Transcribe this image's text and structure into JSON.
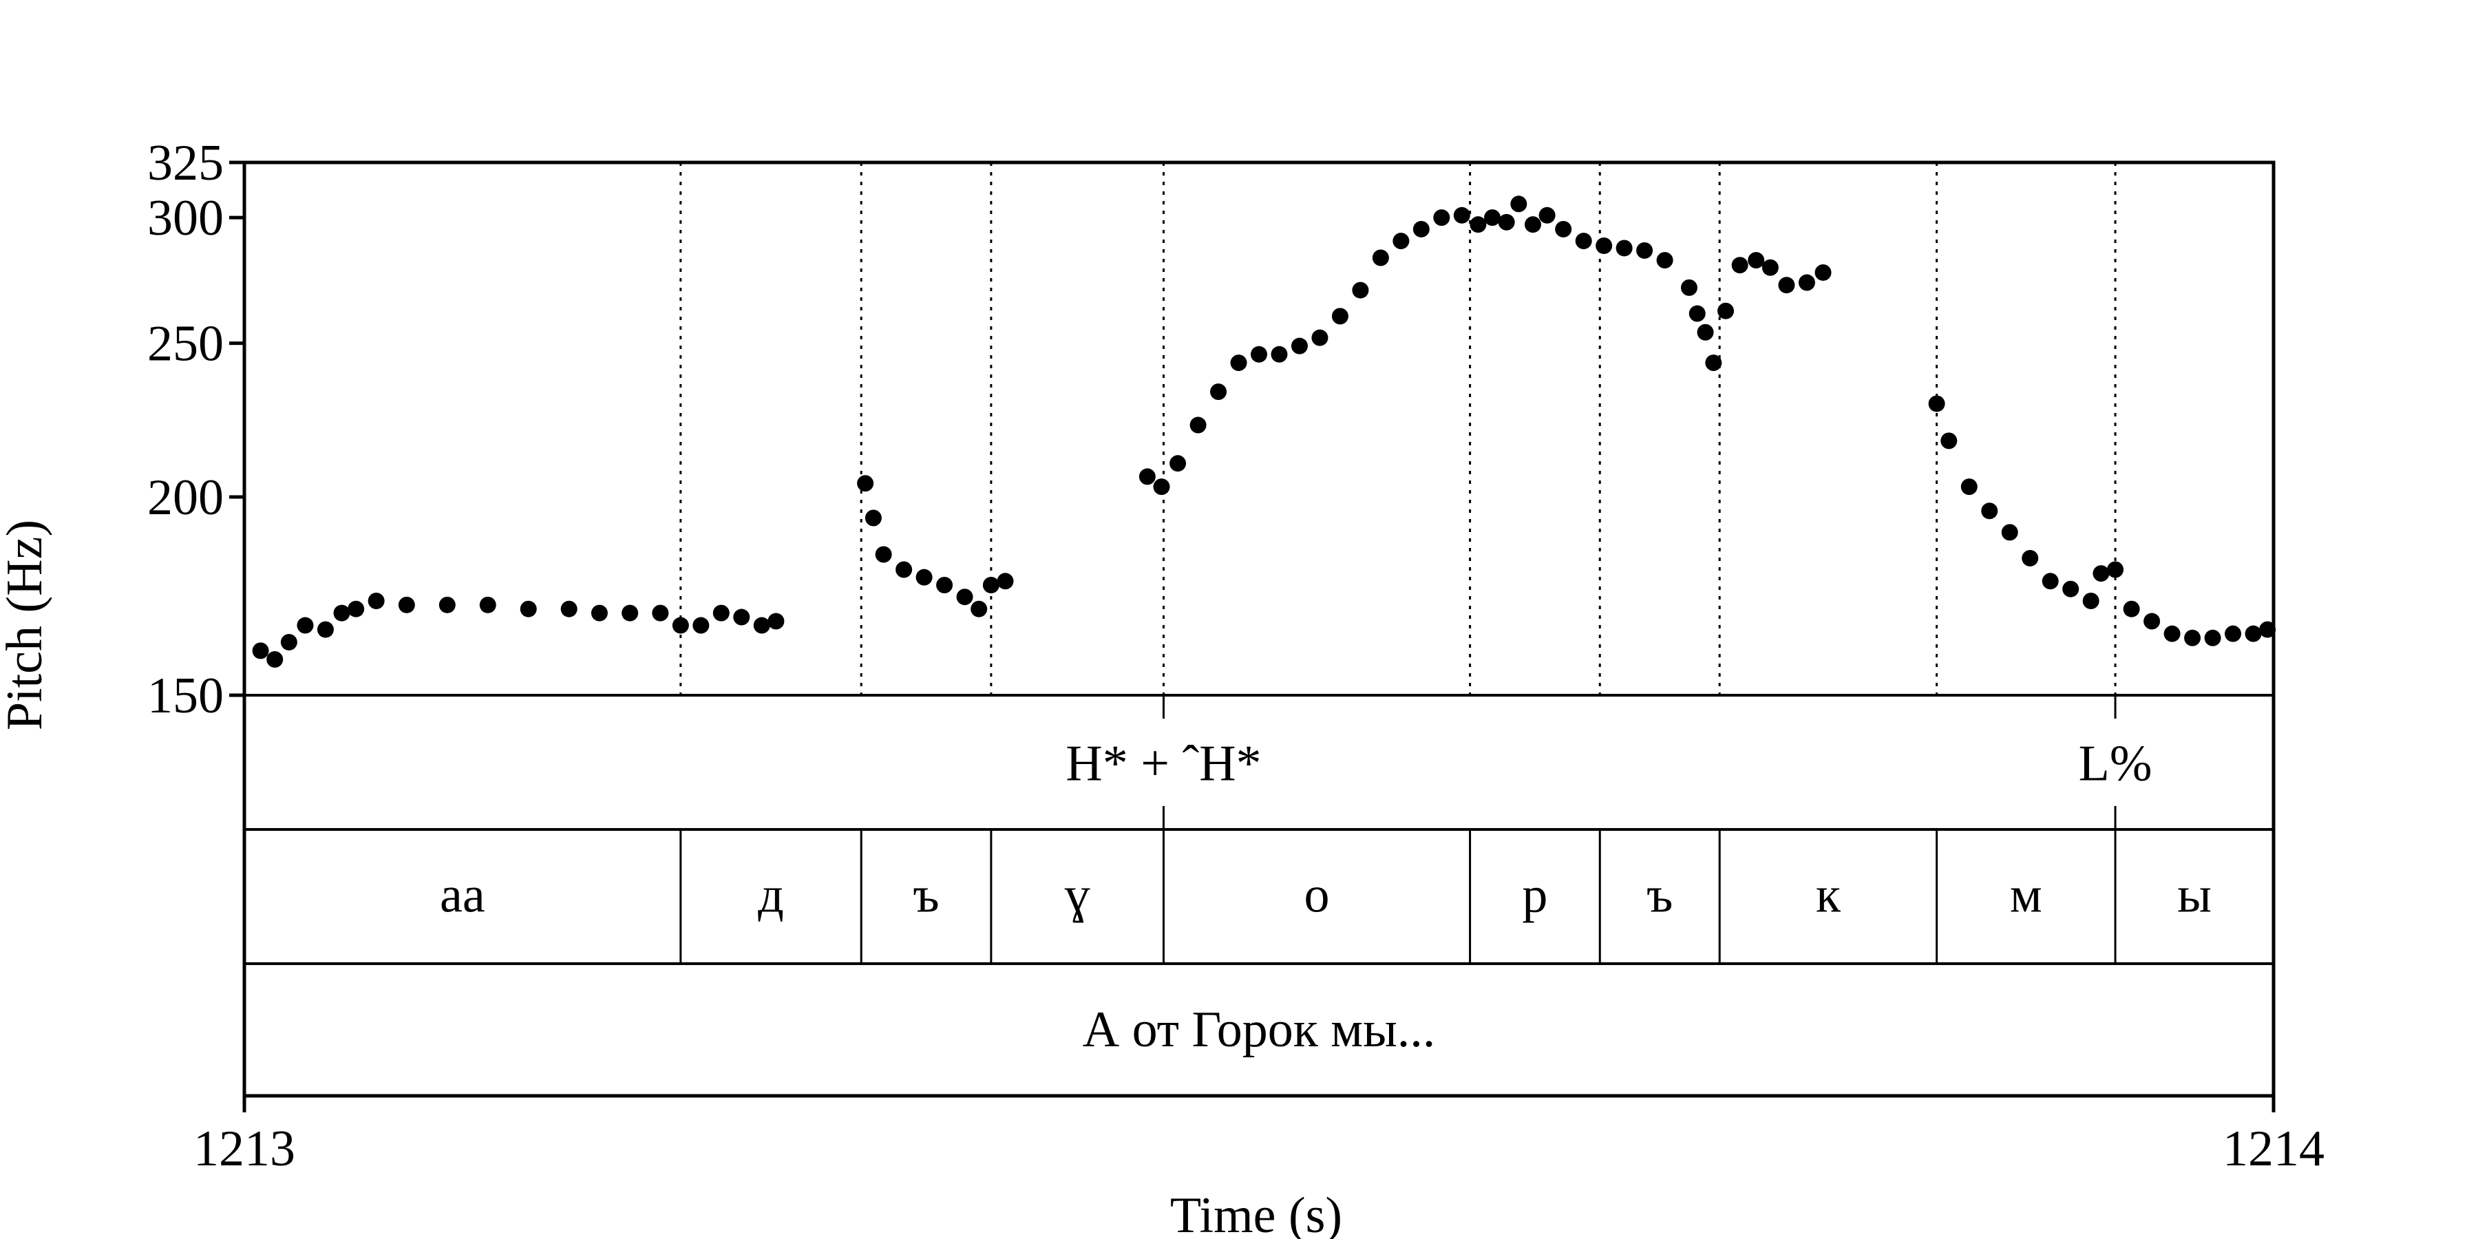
{
  "chart_data": {
    "type": "scatter",
    "xlabel": "Time (s)",
    "ylabel": "Pitch (Hz)",
    "xlim": [
      1213,
      1214
    ],
    "ylim": [
      150,
      325
    ],
    "y_scale": "log",
    "yticks": [
      "150",
      "200",
      "250",
      "300",
      "325"
    ],
    "xticks": [
      "1213",
      "1214"
    ],
    "boundaries": [
      1213.215,
      1213.304,
      1213.368,
      1213.453,
      1213.604,
      1213.668,
      1213.727,
      1213.834,
      1213.922
    ],
    "tones": [
      {
        "label": "H* + ˆH*",
        "time": 1213.453
      },
      {
        "label": "L%",
        "time": 1213.922
      }
    ],
    "segments": [
      {
        "label": "aa",
        "start": 1213.0,
        "end": 1213.215
      },
      {
        "label": "д",
        "start": 1213.215,
        "end": 1213.304
      },
      {
        "label": "ъ",
        "start": 1213.304,
        "end": 1213.368
      },
      {
        "label": "ɣ",
        "start": 1213.368,
        "end": 1213.453
      },
      {
        "label": "о",
        "start": 1213.453,
        "end": 1213.604
      },
      {
        "label": "р",
        "start": 1213.604,
        "end": 1213.668
      },
      {
        "label": "ъ",
        "start": 1213.668,
        "end": 1213.727
      },
      {
        "label": "к",
        "start": 1213.727,
        "end": 1213.834
      },
      {
        "label": "м",
        "start": 1213.834,
        "end": 1213.922
      },
      {
        "label": "ы",
        "start": 1213.922,
        "end": 1214.0
      }
    ],
    "words": [
      {
        "label": "А от Горок мы...",
        "start": 1213.0,
        "end": 1214.0
      }
    ],
    "series": [
      {
        "points": [
          [
            1213.008,
            160
          ],
          [
            1213.015,
            158
          ],
          [
            1213.022,
            162
          ],
          [
            1213.03,
            166
          ],
          [
            1213.04,
            165
          ],
          [
            1213.048,
            169
          ],
          [
            1213.055,
            170
          ],
          [
            1213.065,
            172
          ],
          [
            1213.08,
            171
          ],
          [
            1213.1,
            171
          ],
          [
            1213.12,
            171
          ],
          [
            1213.14,
            170
          ],
          [
            1213.16,
            170
          ],
          [
            1213.175,
            169
          ],
          [
            1213.19,
            169
          ],
          [
            1213.205,
            169
          ],
          [
            1213.215,
            166
          ],
          [
            1213.225,
            166
          ],
          [
            1213.235,
            169
          ],
          [
            1213.245,
            168
          ],
          [
            1213.255,
            166
          ],
          [
            1213.262,
            167
          ]
        ]
      },
      {
        "points": [
          [
            1213.306,
            204
          ],
          [
            1213.31,
            194
          ],
          [
            1213.315,
            184
          ],
          [
            1213.325,
            180
          ],
          [
            1213.335,
            178
          ],
          [
            1213.345,
            176
          ],
          [
            1213.355,
            173
          ],
          [
            1213.362,
            170
          ],
          [
            1213.368,
            176
          ],
          [
            1213.375,
            177
          ]
        ]
      },
      {
        "points": [
          [
            1213.445,
            206
          ],
          [
            1213.452,
            203
          ],
          [
            1213.46,
            210
          ],
          [
            1213.47,
            222
          ],
          [
            1213.48,
            233
          ],
          [
            1213.49,
            243
          ],
          [
            1213.5,
            246
          ],
          [
            1213.51,
            246
          ],
          [
            1213.52,
            249
          ],
          [
            1213.53,
            252
          ],
          [
            1213.54,
            260
          ],
          [
            1213.55,
            270
          ],
          [
            1213.56,
            283
          ],
          [
            1213.57,
            290
          ],
          [
            1213.58,
            295
          ],
          [
            1213.59,
            300
          ],
          [
            1213.6,
            301
          ],
          [
            1213.608,
            297
          ],
          [
            1213.615,
            300
          ],
          [
            1213.622,
            298
          ],
          [
            1213.628,
            306
          ],
          [
            1213.635,
            297
          ],
          [
            1213.642,
            301
          ],
          [
            1213.65,
            295
          ],
          [
            1213.66,
            290
          ],
          [
            1213.67,
            288
          ],
          [
            1213.68,
            287
          ],
          [
            1213.69,
            286
          ],
          [
            1213.7,
            282
          ],
          [
            1213.712,
            271
          ],
          [
            1213.716,
            261
          ],
          [
            1213.72,
            254
          ],
          [
            1213.724,
            243
          ],
          [
            1213.73,
            262
          ],
          [
            1213.737,
            280
          ],
          [
            1213.745,
            282
          ],
          [
            1213.752,
            279
          ],
          [
            1213.76,
            272
          ],
          [
            1213.77,
            273
          ],
          [
            1213.778,
            277
          ]
        ]
      },
      {
        "points": [
          [
            1213.834,
            229
          ],
          [
            1213.84,
            217
          ],
          [
            1213.85,
            203
          ],
          [
            1213.86,
            196
          ],
          [
            1213.87,
            190
          ],
          [
            1213.88,
            183
          ],
          [
            1213.89,
            177
          ],
          [
            1213.9,
            175
          ],
          [
            1213.91,
            172
          ],
          [
            1213.915,
            179
          ],
          [
            1213.922,
            180
          ],
          [
            1213.93,
            170
          ],
          [
            1213.94,
            167
          ],
          [
            1213.95,
            164
          ],
          [
            1213.96,
            163
          ],
          [
            1213.97,
            163
          ],
          [
            1213.98,
            164
          ],
          [
            1213.99,
            164
          ],
          [
            1213.997,
            165
          ]
        ]
      }
    ]
  }
}
